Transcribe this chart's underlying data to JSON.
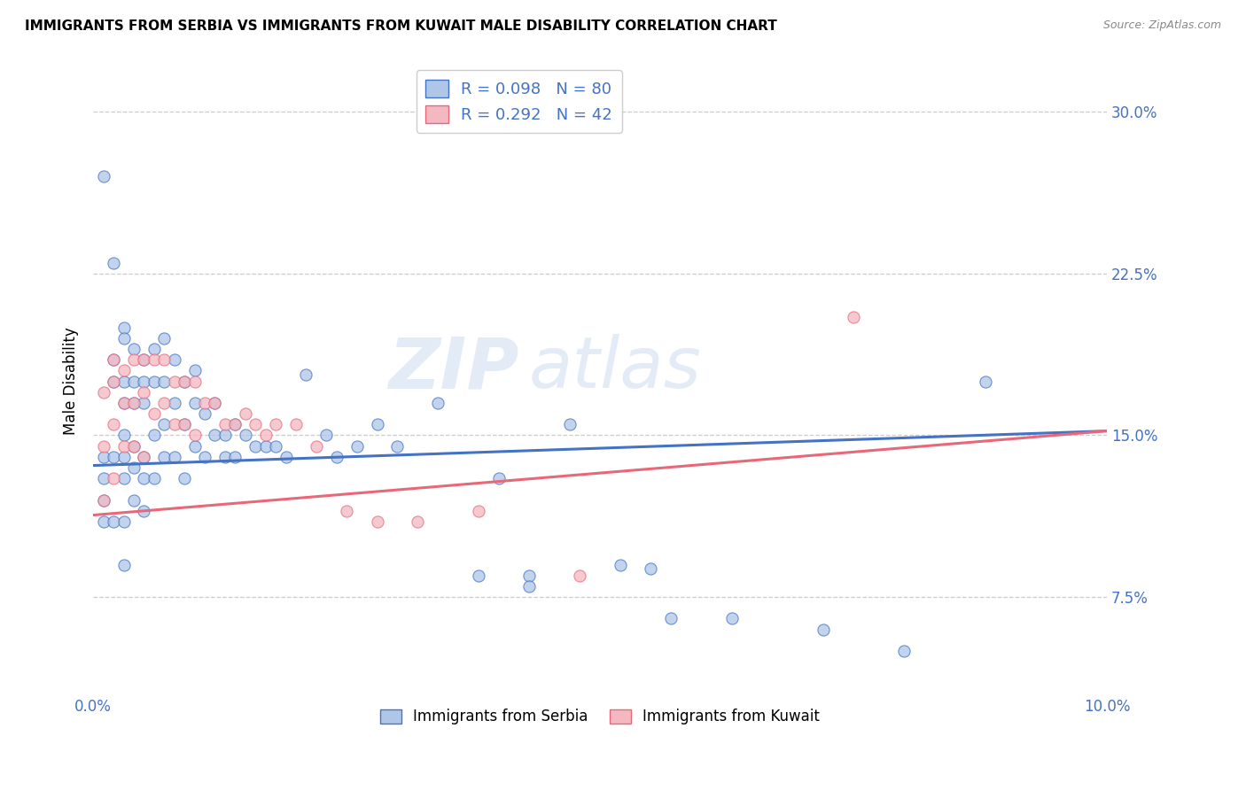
{
  "title": "IMMIGRANTS FROM SERBIA VS IMMIGRANTS FROM KUWAIT MALE DISABILITY CORRELATION CHART",
  "source": "Source: ZipAtlas.com",
  "ylabel": "Male Disability",
  "xlim": [
    0.0,
    0.1
  ],
  "ylim": [
    0.03,
    0.32
  ],
  "serbia_color": "#aec6e8",
  "kuwait_color": "#f4b8c1",
  "serbia_line_color": "#4472c4",
  "kuwait_line_color": "#e8687a",
  "serbia_R": 0.098,
  "serbia_N": 80,
  "kuwait_R": 0.292,
  "kuwait_N": 42,
  "serbia_label": "Immigrants from Serbia",
  "kuwait_label": "Immigrants from Kuwait",
  "watermark_zip": "ZIP",
  "watermark_atlas": "atlas",
  "ytick_vals": [
    0.075,
    0.15,
    0.225,
    0.3
  ],
  "ytick_labels": [
    "7.5%",
    "15.0%",
    "22.5%",
    "30.0%"
  ],
  "serbia_x": [
    0.001,
    0.001,
    0.001,
    0.001,
    0.001,
    0.002,
    0.002,
    0.002,
    0.002,
    0.002,
    0.003,
    0.003,
    0.003,
    0.003,
    0.003,
    0.003,
    0.003,
    0.003,
    0.003,
    0.004,
    0.004,
    0.004,
    0.004,
    0.004,
    0.004,
    0.005,
    0.005,
    0.005,
    0.005,
    0.005,
    0.005,
    0.006,
    0.006,
    0.006,
    0.006,
    0.007,
    0.007,
    0.007,
    0.007,
    0.008,
    0.008,
    0.008,
    0.009,
    0.009,
    0.009,
    0.01,
    0.01,
    0.01,
    0.011,
    0.011,
    0.012,
    0.012,
    0.013,
    0.013,
    0.014,
    0.014,
    0.015,
    0.016,
    0.017,
    0.018,
    0.019,
    0.021,
    0.023,
    0.024,
    0.026,
    0.028,
    0.03,
    0.034,
    0.038,
    0.04,
    0.043,
    0.047,
    0.052,
    0.057,
    0.063,
    0.072,
    0.08,
    0.088,
    0.043,
    0.055
  ],
  "serbia_y": [
    0.27,
    0.14,
    0.13,
    0.12,
    0.11,
    0.23,
    0.185,
    0.175,
    0.14,
    0.11,
    0.2,
    0.195,
    0.175,
    0.165,
    0.15,
    0.14,
    0.13,
    0.11,
    0.09,
    0.19,
    0.175,
    0.165,
    0.145,
    0.135,
    0.12,
    0.185,
    0.175,
    0.165,
    0.14,
    0.13,
    0.115,
    0.19,
    0.175,
    0.15,
    0.13,
    0.195,
    0.175,
    0.155,
    0.14,
    0.185,
    0.165,
    0.14,
    0.175,
    0.155,
    0.13,
    0.18,
    0.165,
    0.145,
    0.16,
    0.14,
    0.165,
    0.15,
    0.15,
    0.14,
    0.155,
    0.14,
    0.15,
    0.145,
    0.145,
    0.145,
    0.14,
    0.178,
    0.15,
    0.14,
    0.145,
    0.155,
    0.145,
    0.165,
    0.085,
    0.13,
    0.085,
    0.155,
    0.09,
    0.065,
    0.065,
    0.06,
    0.05,
    0.175,
    0.08,
    0.088
  ],
  "kuwait_x": [
    0.001,
    0.001,
    0.001,
    0.002,
    0.002,
    0.002,
    0.002,
    0.003,
    0.003,
    0.003,
    0.004,
    0.004,
    0.004,
    0.005,
    0.005,
    0.005,
    0.006,
    0.006,
    0.007,
    0.007,
    0.008,
    0.008,
    0.009,
    0.009,
    0.01,
    0.01,
    0.011,
    0.012,
    0.013,
    0.014,
    0.015,
    0.016,
    0.017,
    0.018,
    0.02,
    0.022,
    0.025,
    0.028,
    0.032,
    0.038,
    0.048,
    0.075
  ],
  "kuwait_y": [
    0.17,
    0.145,
    0.12,
    0.185,
    0.175,
    0.155,
    0.13,
    0.18,
    0.165,
    0.145,
    0.185,
    0.165,
    0.145,
    0.185,
    0.17,
    0.14,
    0.185,
    0.16,
    0.185,
    0.165,
    0.175,
    0.155,
    0.175,
    0.155,
    0.175,
    0.15,
    0.165,
    0.165,
    0.155,
    0.155,
    0.16,
    0.155,
    0.15,
    0.155,
    0.155,
    0.145,
    0.115,
    0.11,
    0.11,
    0.115,
    0.085,
    0.205
  ]
}
